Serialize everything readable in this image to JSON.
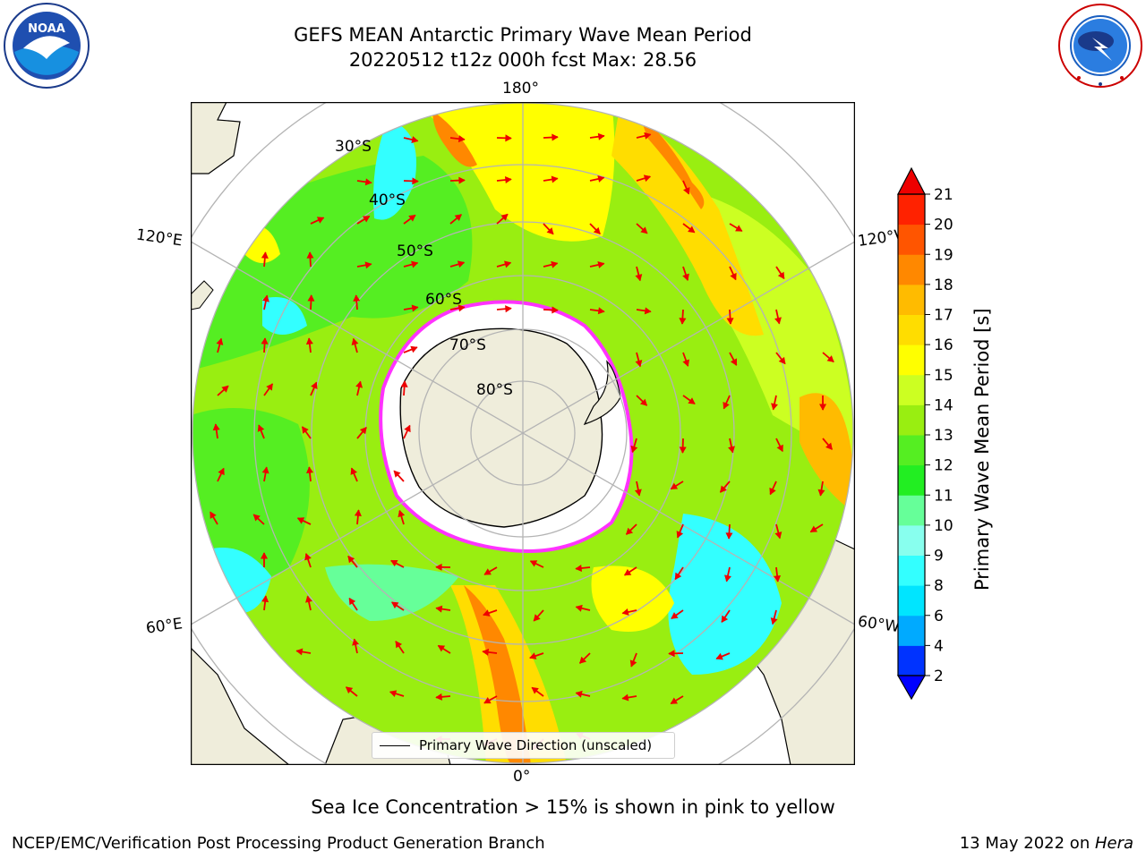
{
  "title": {
    "line1": "GEFS MEAN Antarctic Primary Wave Mean Period",
    "line2": "20220512 t12z 000h fcst   Max: 28.56"
  },
  "logos": {
    "noaa_text": "NOAA",
    "noaa_ring_text": "NATIONAL OCEANIC AND ATMOSPHERIC ADMINISTRATION · U.S. DEPARTMENT OF COMMERCE",
    "nws_ring_text": "NATIONAL WEATHER SERVICE"
  },
  "map": {
    "projection": "south-polar-stereographic",
    "lat_labels": [
      "30°S",
      "40°S",
      "50°S",
      "60°S",
      "70°S",
      "80°S"
    ],
    "lon_labels": {
      "top": "180°",
      "bottom": "0°",
      "left_upper": "120°E",
      "left_lower": "60°E",
      "right_upper": "120°W",
      "right_lower": "60°W"
    },
    "colors": {
      "land": "#efeddb",
      "ice_edge": "#ff33ff",
      "arrows": "#ff0000",
      "grid": "#b4b4b4"
    },
    "legend": {
      "label": "Primary Wave Direction (unscaled)"
    }
  },
  "colorbar": {
    "title": "Primary Wave Mean Period [s]",
    "ticks": [
      "2",
      "4",
      "6",
      "8",
      "9",
      "10",
      "11",
      "12",
      "13",
      "14",
      "15",
      "16",
      "17",
      "18",
      "19",
      "20",
      "21"
    ],
    "colors": [
      "#0033ff",
      "#00aaff",
      "#00e5ff",
      "#33ffff",
      "#88ffee",
      "#66ff99",
      "#22ee22",
      "#55ee22",
      "#99ee11",
      "#ccff22",
      "#ffff00",
      "#ffdd00",
      "#ffbb00",
      "#ff8800",
      "#ff5500",
      "#ff2200"
    ],
    "min_color": "#0000ff",
    "max_color": "#ee0000"
  },
  "footer": {
    "note": "Sea Ice Concentration > 15% is shown in pink to yellow",
    "credit_left": "NCEP/EMC/Verification Post Processing Product Generation Branch",
    "credit_date": "13 May 2022 on ",
    "credit_host": "Hera"
  }
}
